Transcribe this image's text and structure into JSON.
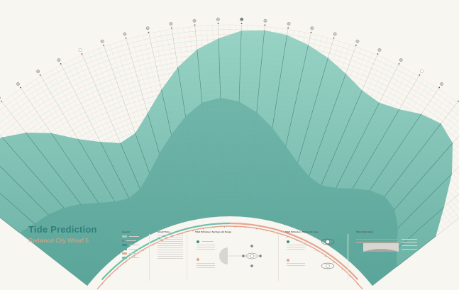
{
  "title": "Tide Prediction",
  "subtitle": "Redwood City Wharf 5",
  "colors": {
    "background": "#f8f6f1",
    "water": "#6fc0ad",
    "water_dark": "#3e8f86",
    "grid_teal": "#7fbfb4",
    "grid_salmon": "#e6a58f",
    "title": "#2f7f79",
    "subtitle": "#e0a487",
    "moon": "#7d7f84"
  },
  "panels": {
    "legend": "Legend",
    "about": "About Tides",
    "springs_neaps": "Tidal Extremes: Springs and Neaps",
    "highs_lows": "Tidal Extremes: Highs and Lows",
    "tidal_data": "Tidal Data Index"
  },
  "chart_data": {
    "type": "area",
    "subtype": "radial fan tide curve, one spoke per day",
    "days": 30,
    "normalized_tide_level": [
      0.95,
      0.93,
      0.9,
      0.86,
      0.8,
      0.72,
      0.62,
      0.55,
      0.5,
      0.52,
      0.6,
      0.7,
      0.8,
      0.88,
      0.93,
      0.97,
      0.98,
      0.97,
      0.94,
      0.9,
      0.85,
      0.8,
      0.78,
      0.8,
      0.84,
      0.86,
      0.82,
      0.7,
      0.55,
      0.42
    ],
    "low_band_level": [
      0.45,
      0.42,
      0.4,
      0.37,
      0.33,
      0.28,
      0.24,
      0.22,
      0.24,
      0.3,
      0.38,
      0.46,
      0.54,
      0.6,
      0.62,
      0.6,
      0.55,
      0.48,
      0.4,
      0.33,
      0.28,
      0.26,
      0.28,
      0.32,
      0.36,
      0.38,
      0.36,
      0.3,
      0.22,
      0.16
    ],
    "moon_phases": [
      "new",
      "waxing-crescent",
      "waxing-crescent",
      "waxing-crescent",
      "first-quarter",
      "waxing-gibbous",
      "waxing-gibbous",
      "waxing-gibbous",
      "full",
      "waning-gibbous",
      "waning-gibbous",
      "waning-gibbous",
      "last-quarter",
      "waning-crescent",
      "waning-crescent",
      "new",
      "waxing-crescent",
      "waxing-crescent",
      "waxing-crescent",
      "first-quarter",
      "waxing-gibbous",
      "waxing-gibbous",
      "waxing-gibbous",
      "full",
      "waning-gibbous",
      "waning-gibbous",
      "waning-gibbous",
      "last-quarter",
      "waning-crescent",
      "waning-crescent"
    ],
    "grid": true,
    "legend": "bottom-left panel"
  }
}
